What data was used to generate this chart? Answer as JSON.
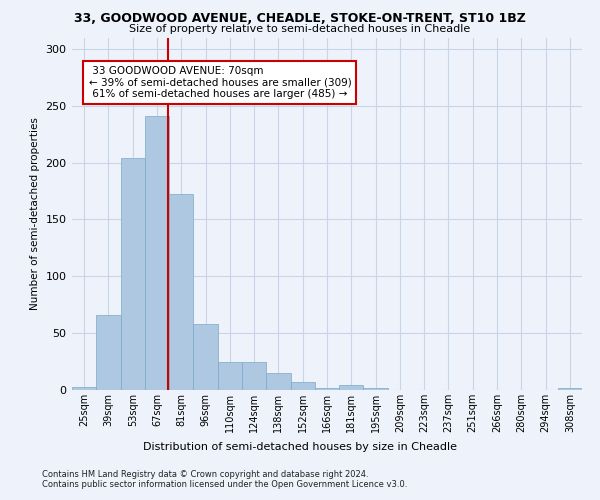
{
  "title1": "33, GOODWOOD AVENUE, CHEADLE, STOKE-ON-TRENT, ST10 1BZ",
  "title2": "Size of property relative to semi-detached houses in Cheadle",
  "xlabel": "Distribution of semi-detached houses by size in Cheadle",
  "ylabel": "Number of semi-detached properties",
  "categories": [
    "25sqm",
    "39sqm",
    "53sqm",
    "67sqm",
    "81sqm",
    "96sqm",
    "110sqm",
    "124sqm",
    "138sqm",
    "152sqm",
    "166sqm",
    "181sqm",
    "195sqm",
    "209sqm",
    "223sqm",
    "237sqm",
    "251sqm",
    "266sqm",
    "280sqm",
    "294sqm",
    "308sqm"
  ],
  "bar_values": [
    3,
    66,
    204,
    241,
    172,
    58,
    25,
    25,
    15,
    7,
    2,
    4,
    2,
    0,
    0,
    0,
    0,
    0,
    0,
    0,
    2
  ],
  "bar_color": "#adc8e0",
  "bar_edge_color": "#7aaac8",
  "property_size_label": "33 GOODWOOD AVENUE: 70sqm",
  "pct_smaller": 39,
  "pct_smaller_count": 309,
  "pct_larger": 61,
  "pct_larger_count": 485,
  "vline_color": "#cc0000",
  "vline_x_index": 3.45,
  "annotation_box_color": "#ffffff",
  "annotation_box_edge": "#cc0000",
  "grid_color": "#c8d4e8",
  "background_color": "#eef2fa",
  "ylim": [
    0,
    310
  ],
  "yticks": [
    0,
    50,
    100,
    150,
    200,
    250,
    300
  ],
  "footnote1": "Contains HM Land Registry data © Crown copyright and database right 2024.",
  "footnote2": "Contains public sector information licensed under the Open Government Licence v3.0."
}
